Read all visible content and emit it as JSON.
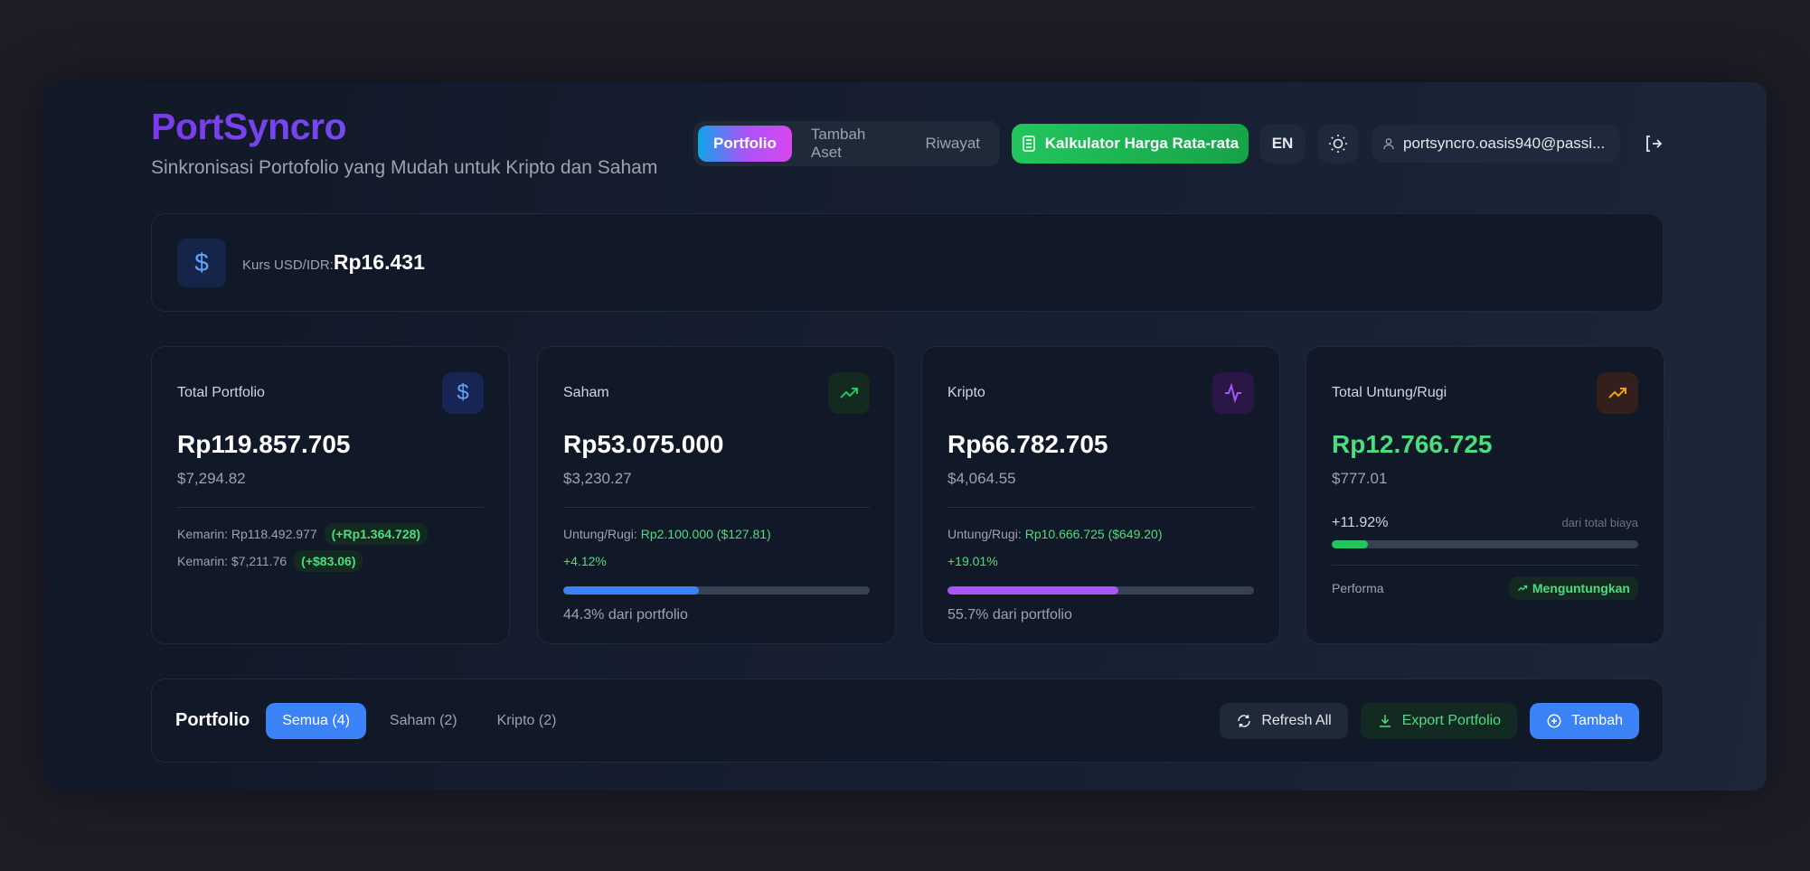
{
  "app": {
    "title": "PortSyncro",
    "subtitle": "Sinkronisasi Portofolio yang Mudah untuk Kripto dan Saham"
  },
  "nav": {
    "tabs": [
      {
        "label": "Portfolio",
        "active": true
      },
      {
        "label": "Tambah Aset"
      },
      {
        "label": "Riwayat"
      }
    ],
    "calculator_label": "Kalkulator Harga Rata-rata",
    "language": "EN",
    "user_email": "portsyncro.oasis940@passi..."
  },
  "rate": {
    "label": "Kurs USD/IDR:",
    "value": "Rp16.431"
  },
  "cards": {
    "total": {
      "title": "Total Portfolio",
      "value": "Rp119.857.705",
      "usd": "$7,294.82",
      "yesterday_idr": "Kemarin: Rp118.492.977",
      "change_idr": "(+Rp1.364.728)",
      "yesterday_usd": "Kemarin: $7,211.76",
      "change_usd": "(+$83.06)"
    },
    "saham": {
      "title": "Saham",
      "value": "Rp53.075.000",
      "usd": "$3,230.27",
      "pl_label": "Untung/Rugi:",
      "pl_value": "Rp2.100.000 ($127.81)",
      "pct": "+4.12%",
      "share": 44.3,
      "share_label": "44.3% dari portfolio"
    },
    "kripto": {
      "title": "Kripto",
      "value": "Rp66.782.705",
      "usd": "$4,064.55",
      "pl_label": "Untung/Rugi:",
      "pl_value": "Rp10.666.725 ($649.20)",
      "pct": "+19.01%",
      "share": 55.7,
      "share_label": "55.7% dari portfolio"
    },
    "pl": {
      "title": "Total Untung/Rugi",
      "value": "Rp12.766.725",
      "usd": "$777.01",
      "pct": "+11.92%",
      "pct_note": "dari total biaya",
      "progress": 11.92,
      "perf_label": "Performa",
      "perf_badge": "Menguntungkan"
    }
  },
  "portfolio": {
    "title": "Portfolio",
    "filters": [
      {
        "label": "Semua (4)",
        "active": true
      },
      {
        "label": "Saham (2)"
      },
      {
        "label": "Kripto (2)"
      }
    ],
    "refresh_label": "Refresh All",
    "export_label": "Export Portfolio",
    "add_label": "Tambah"
  },
  "colors": {
    "accent": "#3b82f6",
    "green": "#22c55e",
    "purple": "#a855f7",
    "orange": "#f59e0b"
  }
}
